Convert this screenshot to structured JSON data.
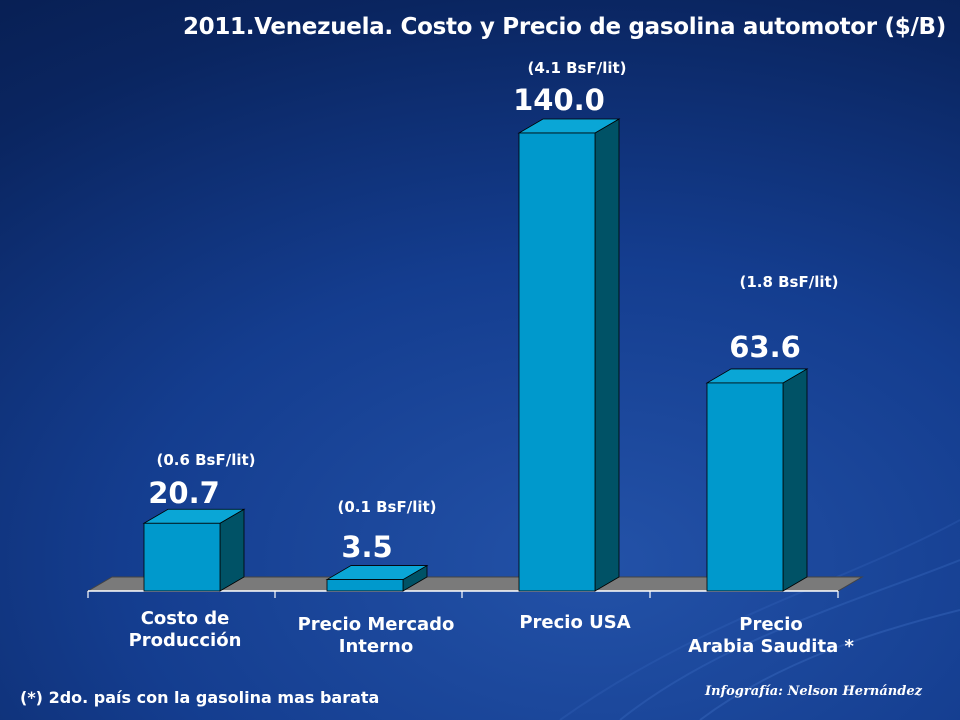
{
  "title": "2011.Venezuela. Costo y Precio de gasolina automotor ($/B)",
  "footnote": "(*) 2do. país con la gasolina mas barata",
  "credit": "Infografía: Nelson Hernández",
  "colors": {
    "bar_front": "#0099cc",
    "bar_side": "#005266",
    "bar_top": "#0aa6d6",
    "floor": "#7a7a7a",
    "text": "#ffffff"
  },
  "chart_data": {
    "type": "bar",
    "title": "2011.Venezuela. Costo y Precio de gasolina automotor ($/B)",
    "categories": [
      [
        "Costo de",
        "Producción"
      ],
      [
        "Precio Mercado",
        "Interno"
      ],
      [
        "Precio USA"
      ],
      [
        "Precio",
        "Arabia Saudita *"
      ]
    ],
    "values": [
      20.7,
      3.5,
      140.0,
      63.6
    ],
    "value_labels": [
      "20.7",
      "3.5",
      "140.0",
      "63.6"
    ],
    "annotations": [
      "(0.6 BsF/lit)",
      "(0.1 BsF/lit)",
      "(4.1 BsF/lit)",
      "(1.8 BsF/lit)"
    ],
    "ylim": [
      0,
      140
    ],
    "grid": false,
    "legend": "none",
    "style": "3d-bar"
  }
}
